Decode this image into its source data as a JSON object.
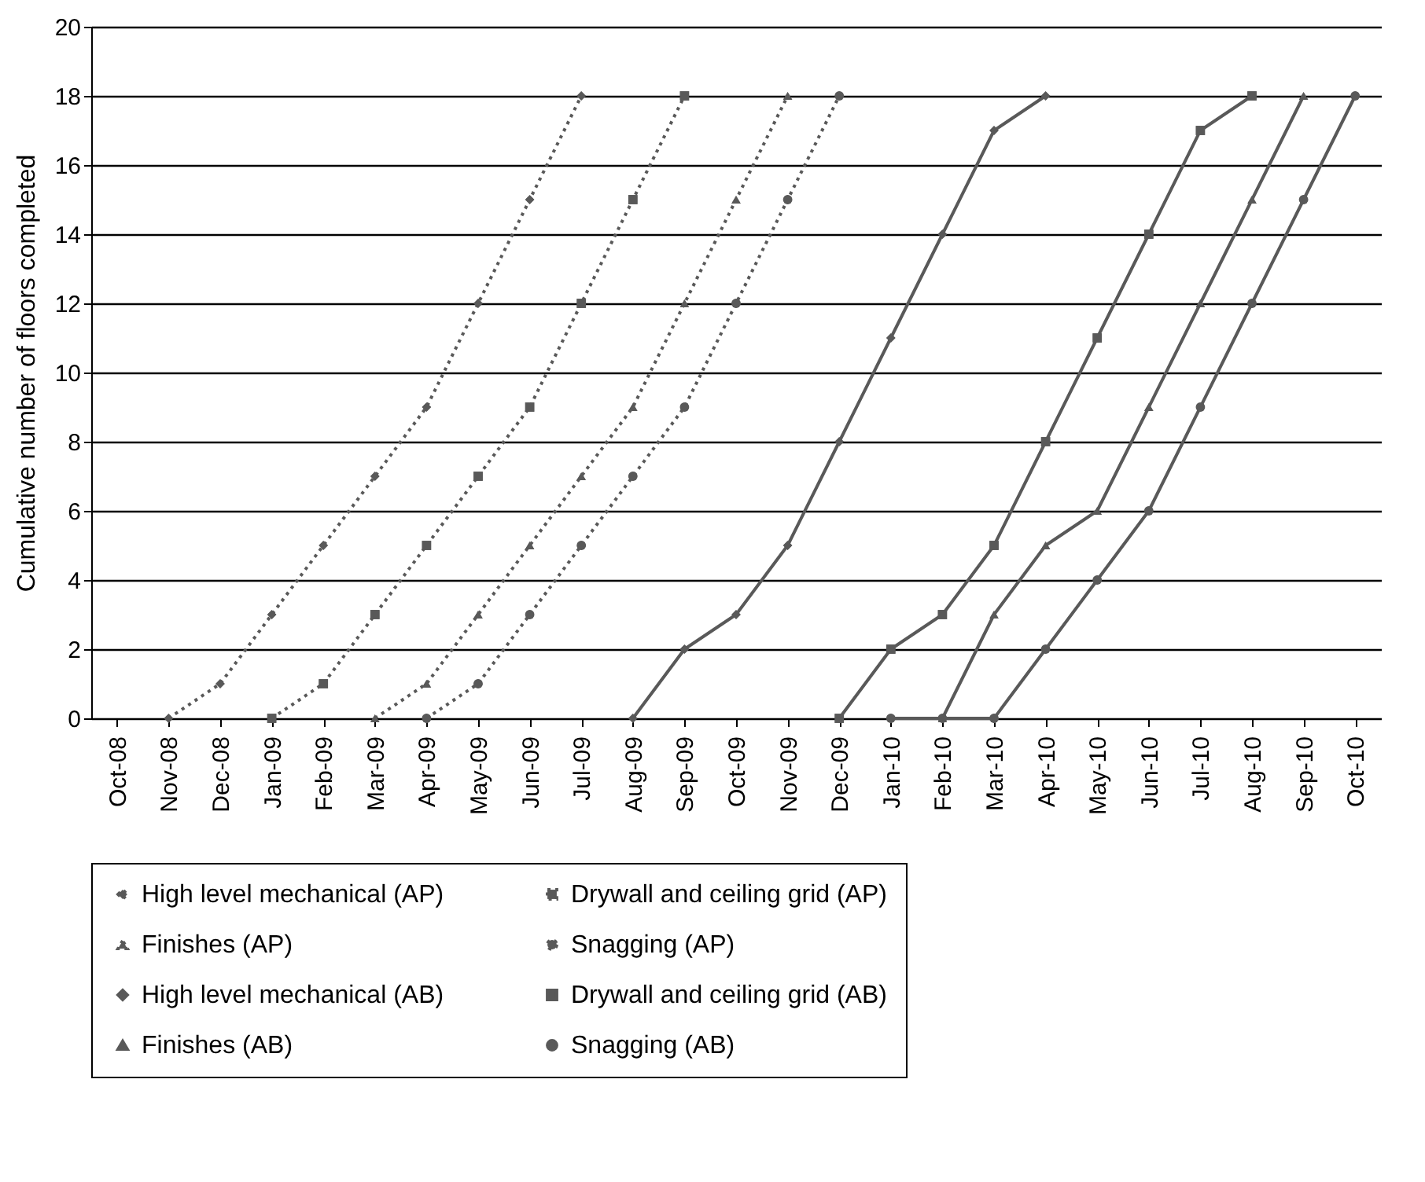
{
  "chart_data": {
    "type": "line",
    "ylabel": "Cumulative number of  floors completed",
    "categories": [
      "Oct-08",
      "Nov-08",
      "Dec-08",
      "Jan-09",
      "Feb-09",
      "Mar-09",
      "Apr-09",
      "May-09",
      "Jun-09",
      "Jul-09",
      "Aug-09",
      "Sep-09",
      "Oct-09",
      "Nov-09",
      "Dec-09",
      "Jan-10",
      "Feb-10",
      "Mar-10",
      "Apr-10",
      "May-10",
      "Jun-10",
      "Jul-10",
      "Aug-10",
      "Sep-10",
      "Oct-10"
    ],
    "ylim": [
      0,
      20
    ],
    "yticks": [
      0,
      2,
      4,
      6,
      8,
      10,
      12,
      14,
      16,
      18,
      20
    ],
    "grid": "y",
    "legend": "bottom",
    "series": [
      {
        "name": "High level mechanical (AP)",
        "color": "#595959",
        "marker": "diamond",
        "line_style": "dotted",
        "values": [
          null,
          0,
          1,
          3,
          5,
          7,
          9,
          12,
          15,
          18,
          null,
          null,
          null,
          null,
          null,
          null,
          null,
          null,
          null,
          null,
          null,
          null,
          null,
          null,
          null
        ]
      },
      {
        "name": "Drywall and ceiling grid (AP)",
        "color": "#595959",
        "marker": "square",
        "line_style": "dotted",
        "values": [
          null,
          null,
          null,
          0,
          1,
          3,
          5,
          7,
          9,
          12,
          15,
          18,
          null,
          null,
          null,
          null,
          null,
          null,
          null,
          null,
          null,
          null,
          null,
          null,
          null
        ]
      },
      {
        "name": "Finishes (AP)",
        "color": "#595959",
        "marker": "triangle",
        "line_style": "dotted",
        "values": [
          null,
          null,
          null,
          null,
          null,
          0,
          1,
          3,
          5,
          7,
          9,
          12,
          15,
          18,
          null,
          null,
          null,
          null,
          null,
          null,
          null,
          null,
          null,
          null,
          null
        ]
      },
      {
        "name": "Snagging (AP)",
        "color": "#595959",
        "marker": "circle",
        "line_style": "dotted",
        "values": [
          null,
          null,
          null,
          null,
          null,
          null,
          0,
          1,
          3,
          5,
          7,
          9,
          12,
          15,
          18,
          null,
          null,
          null,
          null,
          null,
          null,
          null,
          null,
          null,
          null
        ]
      },
      {
        "name": "High level mechanical (AB)",
        "color": "#595959",
        "marker": "diamond",
        "line_style": "solid",
        "values": [
          null,
          null,
          null,
          null,
          null,
          null,
          null,
          null,
          null,
          null,
          0,
          2,
          3,
          5,
          8,
          11,
          14,
          17,
          18,
          null,
          null,
          null,
          null,
          null,
          null
        ]
      },
      {
        "name": "Drywall and ceiling grid (AB)",
        "color": "#595959",
        "marker": "square",
        "line_style": "solid",
        "values": [
          null,
          null,
          null,
          null,
          null,
          null,
          null,
          null,
          null,
          null,
          null,
          null,
          null,
          null,
          0,
          2,
          3,
          5,
          8,
          11,
          14,
          17,
          18,
          null,
          null
        ]
      },
      {
        "name": "Finishes (AB)",
        "color": "#595959",
        "marker": "triangle",
        "line_style": "solid",
        "values": [
          null,
          null,
          null,
          null,
          null,
          null,
          null,
          null,
          null,
          null,
          null,
          null,
          null,
          null,
          null,
          null,
          0,
          3,
          5,
          6,
          9,
          12,
          15,
          18,
          null
        ]
      },
      {
        "name": "Snagging (AB)",
        "color": "#595959",
        "marker": "circle",
        "line_style": "solid",
        "values": [
          null,
          null,
          null,
          null,
          null,
          null,
          null,
          null,
          null,
          null,
          null,
          null,
          null,
          null,
          null,
          0,
          0,
          0,
          2,
          4,
          6,
          9,
          12,
          15,
          18
        ]
      }
    ]
  }
}
